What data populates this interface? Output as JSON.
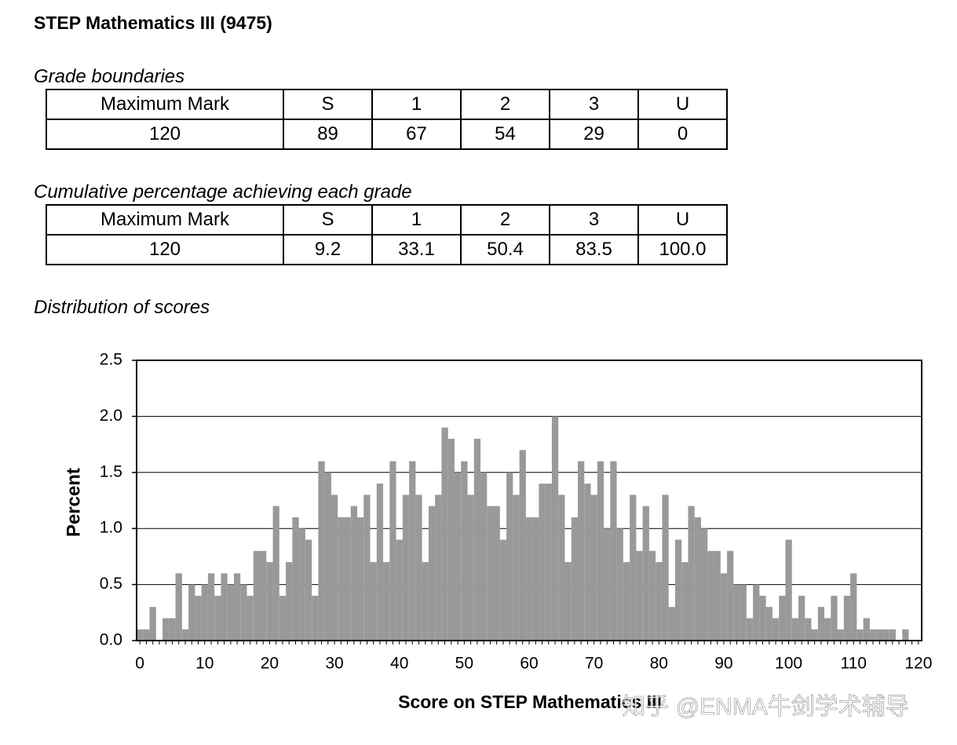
{
  "header": {
    "title": "STEP Mathematics III (9475)"
  },
  "grade_boundaries": {
    "title": "Grade boundaries",
    "columns": [
      "Maximum Mark",
      "S",
      "1",
      "2",
      "3",
      "U"
    ],
    "rows": [
      [
        "120",
        "89",
        "67",
        "54",
        "29",
        "0"
      ]
    ]
  },
  "cumulative": {
    "title": "Cumulative percentage achieving each grade",
    "columns": [
      "Maximum Mark",
      "S",
      "1",
      "2",
      "3",
      "U"
    ],
    "rows": [
      [
        "120",
        "9.2",
        "33.1",
        "50.4",
        "83.5",
        "100.0"
      ]
    ]
  },
  "distribution": {
    "title": "Distribution of scores"
  },
  "chart_data": {
    "type": "bar",
    "y_label": "Percent",
    "x_label": "Score on STEP Mathematics III",
    "color": "#999999",
    "grid": true,
    "ylim": [
      0,
      2.5
    ],
    "yticks": [
      {
        "value": 0,
        "label": "0.0"
      },
      {
        "value": 0.5,
        "label": "0.5"
      },
      {
        "value": 1,
        "label": "1.0"
      },
      {
        "value": 1.5,
        "label": "1.5"
      },
      {
        "value": 2,
        "label": "2.0"
      },
      {
        "value": 2.5,
        "label": "2.5"
      }
    ],
    "categories": [
      "0",
      null,
      null,
      null,
      null,
      null,
      null,
      null,
      null,
      null,
      "10",
      null,
      null,
      null,
      null,
      null,
      null,
      null,
      null,
      null,
      "20",
      null,
      null,
      null,
      null,
      null,
      null,
      null,
      null,
      null,
      "30",
      null,
      null,
      null,
      null,
      null,
      null,
      null,
      null,
      null,
      "40",
      null,
      null,
      null,
      null,
      null,
      null,
      null,
      null,
      null,
      "50",
      null,
      null,
      null,
      null,
      null,
      null,
      null,
      null,
      null,
      "60",
      null,
      null,
      null,
      null,
      null,
      null,
      null,
      null,
      null,
      "70",
      null,
      null,
      null,
      null,
      null,
      null,
      null,
      null,
      null,
      "80",
      null,
      null,
      null,
      null,
      null,
      null,
      null,
      null,
      null,
      "90",
      null,
      null,
      null,
      null,
      null,
      null,
      null,
      null,
      null,
      "100",
      null,
      null,
      null,
      null,
      null,
      null,
      null,
      null,
      null,
      "110",
      null,
      null,
      null,
      null,
      null,
      null,
      null,
      null,
      null,
      "120"
    ],
    "values": [
      0.1,
      0.1,
      0.3,
      0,
      0.2,
      0.2,
      0.6,
      0.1,
      0.5,
      0.4,
      0.5,
      0.6,
      0.4,
      0.6,
      0.5,
      0.6,
      0.5,
      0.4,
      0.8,
      0.8,
      0.7,
      1.2,
      0.4,
      0.7,
      1.1,
      1.0,
      0.9,
      0.4,
      1.6,
      1.5,
      1.3,
      1.1,
      1.1,
      1.2,
      1.1,
      1.3,
      0.7,
      1.4,
      0.7,
      1.6,
      0.9,
      1.3,
      1.6,
      1.3,
      0.7,
      1.2,
      1.3,
      1.9,
      1.8,
      1.5,
      1.6,
      1.3,
      1.8,
      1.5,
      1.2,
      1.2,
      0.9,
      1.5,
      1.3,
      1.7,
      1.1,
      1.1,
      1.4,
      1.4,
      2.0,
      1.3,
      0.7,
      1.1,
      1.6,
      1.4,
      1.3,
      1.6,
      1.0,
      1.6,
      1.0,
      0.7,
      1.3,
      0.8,
      1.2,
      0.8,
      0.7,
      1.3,
      0.3,
      0.9,
      0.7,
      1.2,
      1.1,
      1.0,
      0.8,
      0.8,
      0.6,
      0.8,
      0.5,
      0.5,
      0.2,
      0.5,
      0.4,
      0.3,
      0.2,
      0.4,
      0.9,
      0.2,
      0.4,
      0.2,
      0.1,
      0.3,
      0.2,
      0.4,
      0.1,
      0.4,
      0.6,
      0.1,
      0.2,
      0.1,
      0.1,
      0.1,
      0.1,
      0,
      0.1,
      0,
      0
    ]
  },
  "watermark": "知乎 @ENMA牛剑学术辅导"
}
